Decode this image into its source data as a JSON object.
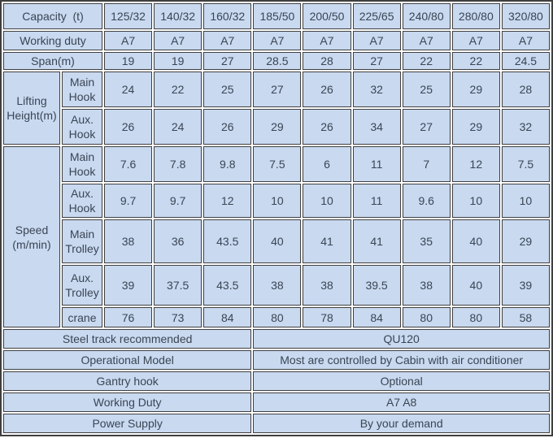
{
  "colors": {
    "cell_background": "#c8d9f0",
    "border": "#3f3f3f",
    "text": "#3b4553",
    "gap_background": "#ffffff"
  },
  "table": {
    "capacity_label": "Capacity  (t)",
    "capacities": [
      "125/32",
      "140/32",
      "160/32",
      "185/50",
      "200/50",
      "225/65",
      "240/80",
      "280/80",
      "320/80"
    ],
    "rows": [
      {
        "label": "Working duty",
        "values": [
          "A7",
          "A7",
          "A7",
          "A7",
          "A7",
          "A7",
          "A7",
          "A7",
          "A7"
        ]
      },
      {
        "label": "Span(m)",
        "values": [
          "19",
          "19",
          "27",
          "28.5",
          "28",
          "27",
          "22",
          "22",
          "24.5"
        ]
      }
    ],
    "groups": [
      {
        "label": "Lifting Height(m)",
        "rows": [
          {
            "label": "Main Hook",
            "values": [
              "24",
              "22",
              "25",
              "27",
              "26",
              "32",
              "25",
              "29",
              "28"
            ]
          },
          {
            "label": "Aux. Hook",
            "values": [
              "26",
              "24",
              "26",
              "29",
              "26",
              "34",
              "27",
              "29",
              "32"
            ]
          }
        ]
      },
      {
        "label": "Speed (m/min)",
        "rows": [
          {
            "label": "Main Hook",
            "values": [
              "7.6",
              "7.8",
              "9.8",
              "7.5",
              "6",
              "11",
              "7",
              "12",
              "7.5"
            ]
          },
          {
            "label": "Aux. Hook",
            "values": [
              "9.7",
              "9.7",
              "12",
              "10",
              "10",
              "11",
              "9.6",
              "10",
              "10"
            ]
          },
          {
            "label": "Main Trolley",
            "values": [
              "38",
              "36",
              "43.5",
              "40",
              "41",
              "41",
              "35",
              "40",
              "29"
            ]
          },
          {
            "label": "Aux. Trolley",
            "values": [
              "39",
              "37.5",
              "43.5",
              "38",
              "38",
              "39.5",
              "38",
              "40",
              "39"
            ]
          },
          {
            "label": "crane",
            "values": [
              "76",
              "73",
              "84",
              "80",
              "78",
              "84",
              "80",
              "80",
              "58"
            ]
          }
        ]
      }
    ],
    "footer_rows": [
      {
        "label": "Steel track recommended",
        "value": "QU120"
      },
      {
        "label": "Operational Model",
        "value": "Most are controlled by Cabin with air conditioner"
      },
      {
        "label": "Gantry hook",
        "value": "Optional"
      },
      {
        "label": "Working Duty",
        "value": "A7 A8"
      },
      {
        "label": "Power Supply",
        "value": "By your demand"
      }
    ]
  }
}
